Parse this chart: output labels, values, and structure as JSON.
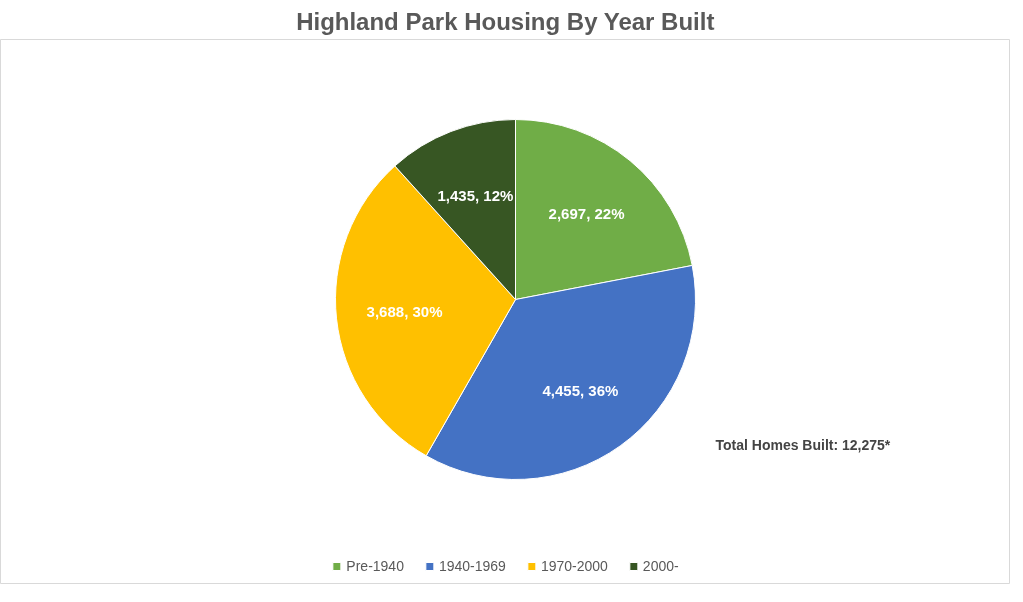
{
  "chart_data": {
    "type": "pie",
    "title": "Highland Park Housing By Year Built",
    "categories": [
      "Pre-1940",
      "1940-1969",
      "1970-2000",
      "2000-"
    ],
    "values": [
      2697,
      4455,
      3688,
      1435
    ],
    "colors": [
      "#70ad47",
      "#4472c4",
      "#ffc000",
      "#375623"
    ],
    "value_labels": [
      "2,697, 22%",
      "4,455, 36%",
      "3,688, 30%",
      "1,435, 12%"
    ],
    "annotations": [
      "Total Homes Built:  12,275*"
    ],
    "legend": "bottom"
  }
}
